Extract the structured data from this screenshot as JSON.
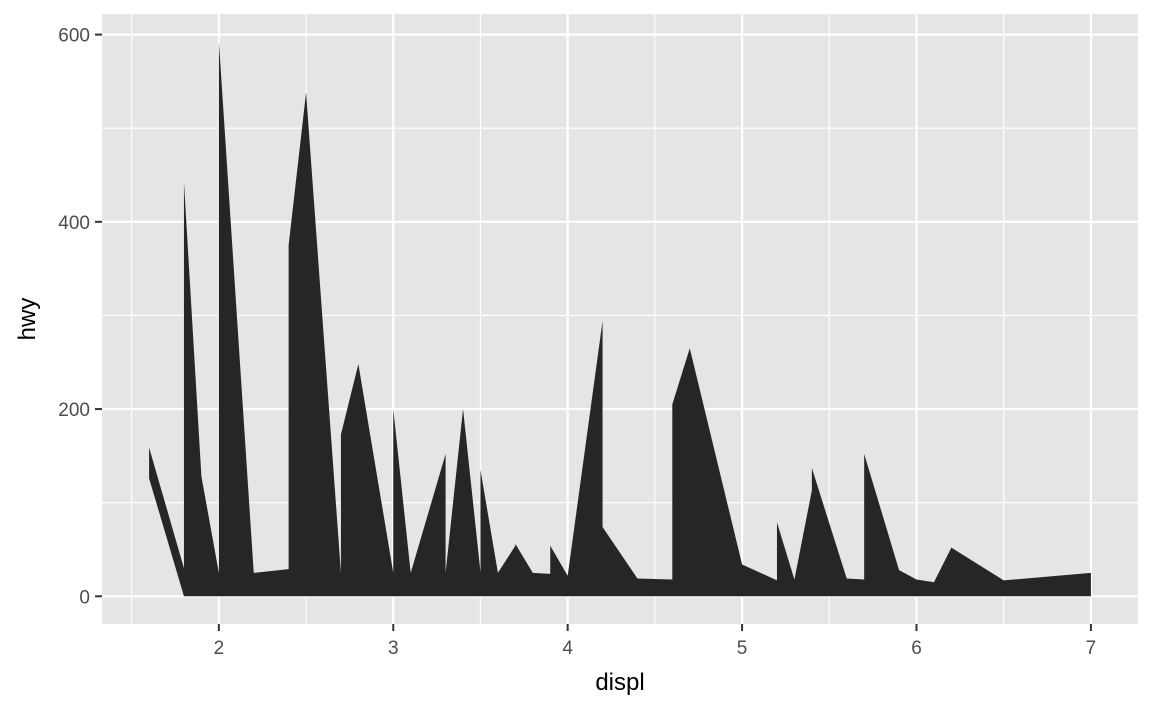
{
  "chart_data": {
    "type": "area",
    "title": "",
    "xlabel": "displ",
    "ylabel": "hwy",
    "xlim": [
      1.33,
      7.27
    ],
    "ylim": [
      -29.6,
      622
    ],
    "x_ticks": [
      2,
      3,
      4,
      5,
      6,
      7
    ],
    "x_tick_labels": [
      "2",
      "3",
      "4",
      "5",
      "6",
      "7"
    ],
    "y_ticks": [
      0,
      200,
      400,
      600
    ],
    "y_tick_labels": [
      "0",
      "200",
      "400",
      "600"
    ],
    "grid": true,
    "legend": "none",
    "colors": {
      "panel": "#e5e5e5",
      "grid": "#ffffff",
      "fill": "#262626",
      "tick": "#333333",
      "text": "#4d4d4d"
    },
    "series": [
      {
        "x": [
          1.6,
          1.8,
          1.8,
          1.9,
          2.0,
          2.0,
          2.2,
          2.4,
          2.4,
          2.5,
          2.7,
          2.7,
          2.8,
          3.0,
          3.0,
          3.1,
          3.3,
          3.3,
          3.4,
          3.5,
          3.5,
          3.6,
          3.7,
          3.7,
          3.8,
          3.9,
          3.9,
          4.0,
          4.2,
          4.2,
          4.4,
          4.6,
          4.6,
          4.7,
          5.0,
          5.2,
          5.2,
          5.3,
          5.4,
          5.4,
          5.6,
          5.7,
          5.7,
          5.9,
          6.0,
          6.1,
          6.2,
          6.5,
          7.0
        ],
        "ymin": [
          126,
          0,
          0,
          0,
          0,
          0,
          0,
          0,
          0,
          0,
          0,
          0,
          0,
          0,
          0,
          0,
          0,
          0,
          0,
          0,
          0,
          0,
          0,
          0,
          0,
          0,
          0,
          0,
          0,
          0,
          0,
          0,
          0,
          0,
          0,
          0,
          0,
          0,
          0,
          0,
          0,
          0,
          0,
          0,
          0,
          0,
          0,
          0,
          0
        ],
        "ymax": [
          159,
          30,
          442,
          128,
          25,
          593,
          25,
          29,
          375,
          538,
          25,
          173,
          248,
          25,
          200,
          25,
          152,
          25,
          200,
          26,
          135,
          25,
          54,
          56,
          25,
          24,
          54,
          22,
          294,
          74,
          19,
          18,
          205,
          265,
          34,
          17,
          79,
          18,
          113,
          137,
          19,
          18,
          152,
          28,
          18,
          15,
          52,
          17,
          25
        ]
      }
    ]
  }
}
